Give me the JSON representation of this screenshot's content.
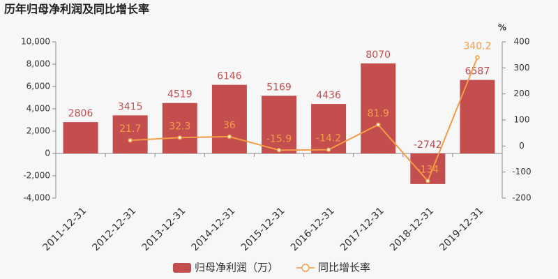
{
  "chart_data": {
    "type": "bar",
    "title": "历年归母净利润及同比增长率",
    "y2_unit": "%",
    "categories": [
      "2011-12-31",
      "2012-12-31",
      "2013-12-31",
      "2014-12-31",
      "2015-12-31",
      "2016-12-31",
      "2017-12-31",
      "2018-12-31",
      "2019-12-31"
    ],
    "series": [
      {
        "name": "归母净利润（万）",
        "type": "bar",
        "color": "#c44e4e",
        "values": [
          2806,
          3415,
          4519,
          6146,
          5169,
          4436,
          8070,
          -2742,
          6587
        ]
      },
      {
        "name": "同比增长率",
        "type": "line",
        "axis": "y2",
        "color": "#f39c45",
        "values": [
          null,
          21.7,
          32.3,
          36,
          -15.9,
          -14.2,
          81.9,
          -134,
          340.2
        ]
      }
    ],
    "ylim": [
      -4000,
      10000
    ],
    "yticks": [
      {
        "value": -4000,
        "label": "-4,000"
      },
      {
        "value": -2000,
        "label": "-2,000"
      },
      0,
      {
        "value": 2000,
        "label": "2,000"
      },
      {
        "value": 4000,
        "label": "4,000"
      },
      {
        "value": 6000,
        "label": "6,000"
      },
      {
        "value": 8000,
        "label": "8,000"
      },
      {
        "value": 10000,
        "label": "10,000"
      }
    ],
    "y2lim": [
      -200,
      400
    ],
    "y2ticks": [
      -200,
      -100,
      0,
      100,
      200,
      300,
      400
    ],
    "grid": false,
    "legend": "bottom"
  }
}
